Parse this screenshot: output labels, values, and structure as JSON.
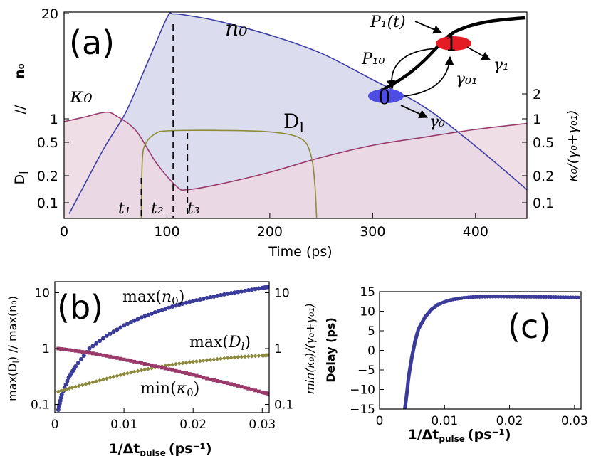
{
  "chart_data": [
    {
      "panel": "(a)",
      "type": "area",
      "xlabel": "Time (ps)",
      "ylabel_left_top": "n₀",
      "ylabel_left_sep": "//",
      "ylabel_left_bottom": "D",
      "ylabel_left_bottom_sub": "l",
      "ylabel_right": "κ₀/(γ₀+γ₀₁)",
      "xlim": [
        0,
        450
      ],
      "x_ticks": [
        "0",
        "100",
        "200",
        "300",
        "400"
      ],
      "y_ticks_left": [
        "0.1",
        "0.2",
        "0.5",
        "1",
        "20"
      ],
      "y_ticks_right": [
        "0.1",
        "0.2",
        "0.5",
        "1",
        "2"
      ],
      "series": [
        {
          "name": "n₀",
          "color": "#3d3da3",
          "fill": "#d6d6ec",
          "x": [
            5,
            20,
            40,
            60,
            80,
            100,
            106,
            120,
            150,
            200,
            250,
            300,
            350,
            400,
            450
          ],
          "y": [
            0.07,
            0.16,
            0.45,
            1.2,
            4.5,
            17,
            19,
            18.2,
            15.5,
            10.5,
            6.3,
            3.0,
            1.4,
            0.45,
            0.14
          ]
        },
        {
          "name": "κ₀",
          "color": "#9a3c6e",
          "fill": "#ecd8e2",
          "x": [
            0,
            20,
            40,
            50,
            70,
            90,
            110,
            120,
            150,
            200,
            250,
            300,
            350,
            400,
            450
          ],
          "y": [
            0.92,
            1.05,
            1.2,
            1.1,
            0.7,
            0.28,
            0.15,
            0.14,
            0.16,
            0.22,
            0.33,
            0.46,
            0.58,
            0.73,
            0.87
          ]
        },
        {
          "name": "D_l",
          "color": "#8c8c3a",
          "x": [
            75,
            76,
            80,
            90,
            100,
            120,
            150,
            200,
            230,
            240,
            244,
            246
          ],
          "y": [
            0.06,
            0.3,
            0.5,
            0.66,
            0.7,
            0.71,
            0.71,
            0.68,
            0.56,
            0.35,
            0.15,
            0.06
          ]
        }
      ],
      "markers": [
        {
          "name": "t₁",
          "x": 75
        },
        {
          "name": "t₂",
          "x": 106
        },
        {
          "name": "t₃",
          "x": 120
        }
      ],
      "inset": {
        "levels": [
          "1",
          "0"
        ],
        "rates": [
          "P₁(t)",
          "P₁₀",
          "γ₁",
          "γ₀₁",
          "γ₀"
        ],
        "level_colors": [
          "#e51c23",
          "#4d4de6"
        ]
      }
    },
    {
      "panel": "(b)",
      "type": "scatter",
      "xlabel": "1/Δt",
      "xlabel_sub": "pulse",
      "xlabel_units": "(ps⁻¹)",
      "ylabel_left": "max(D",
      "ylabel_left_sub": "l",
      "ylabel_left_rest": ")  //  max(n₀)",
      "ylabel_right": "min(κ₀)/(γ₀+γ₀₁)",
      "xlim": [
        0,
        0.031
      ],
      "x_ticks": [
        "0",
        "0.01",
        "0.02",
        "0.03"
      ],
      "y_ticks_left": [
        "0.1",
        "1",
        "10"
      ],
      "y_ticks_right": [
        "0.1",
        "1",
        "10"
      ],
      "series": [
        {
          "name": "max(n₀)",
          "color": "#3b3b9a",
          "x": [
            0.0005,
            0.001,
            0.002,
            0.003,
            0.005,
            0.0075,
            0.01,
            0.0125,
            0.015,
            0.0175,
            0.02,
            0.0225,
            0.025,
            0.0275,
            0.03,
            0.031
          ],
          "y": [
            0.08,
            0.15,
            0.3,
            0.48,
            1.0,
            1.7,
            2.6,
            3.6,
            4.7,
            5.9,
            7.1,
            8.3,
            9.6,
            10.8,
            12.2,
            12.8
          ]
        },
        {
          "name": "max(D_l)",
          "color": "#8c8a3a",
          "x": [
            0.0005,
            0.0025,
            0.005,
            0.0075,
            0.01,
            0.0125,
            0.015,
            0.0175,
            0.02,
            0.0225,
            0.025,
            0.0275,
            0.03,
            0.031
          ],
          "y": [
            0.17,
            0.2,
            0.24,
            0.29,
            0.35,
            0.41,
            0.47,
            0.53,
            0.58,
            0.63,
            0.68,
            0.72,
            0.75,
            0.77
          ]
        },
        {
          "name": "min(κ₀)",
          "color": "#9a3a6a",
          "x": [
            0.0005,
            0.0025,
            0.005,
            0.0075,
            0.01,
            0.0125,
            0.015,
            0.0175,
            0.02,
            0.0225,
            0.025,
            0.0275,
            0.03,
            0.031
          ],
          "y": [
            1.0,
            0.93,
            0.84,
            0.74,
            0.64,
            0.55,
            0.47,
            0.4,
            0.34,
            0.28,
            0.24,
            0.2,
            0.165,
            0.155
          ]
        }
      ]
    },
    {
      "panel": "(c)",
      "type": "scatter",
      "xlabel": "1/Δt",
      "xlabel_sub": "pulse",
      "xlabel_units": "(ps⁻¹)",
      "ylabel": "Delay (ps)",
      "xlim": [
        0,
        0.031
      ],
      "ylim": [
        -15,
        15
      ],
      "x_ticks": [
        "0",
        "0.01",
        "0.02",
        "0.03"
      ],
      "y_ticks": [
        "15",
        "10",
        "5",
        "0",
        "−5",
        "−10",
        "−15"
      ],
      "series": [
        {
          "name": "Delay",
          "color": "#3b3b9a",
          "x": [
            0.0039,
            0.0042,
            0.0045,
            0.005,
            0.0055,
            0.006,
            0.007,
            0.008,
            0.009,
            0.01,
            0.011,
            0.012,
            0.013,
            0.014,
            0.015,
            0.017,
            0.02,
            0.023,
            0.026,
            0.029,
            0.031
          ],
          "y": [
            -15,
            -11,
            -6.5,
            -1.5,
            2.5,
            5.5,
            8.5,
            10.5,
            11.7,
            12.4,
            12.9,
            13.2,
            13.45,
            13.6,
            13.7,
            13.75,
            13.75,
            13.7,
            13.65,
            13.55,
            13.5
          ]
        }
      ]
    }
  ]
}
